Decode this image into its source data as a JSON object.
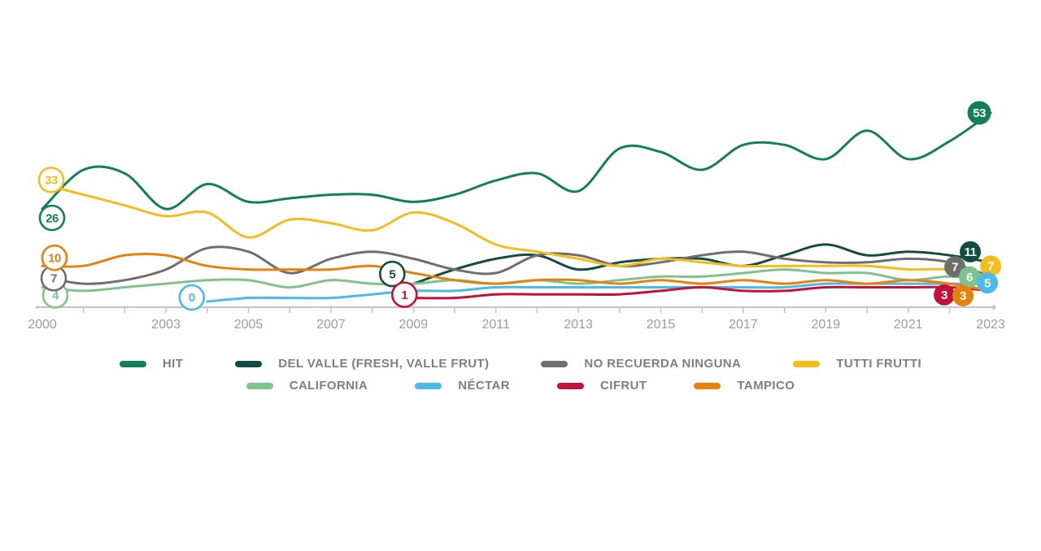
{
  "chart_data": {
    "type": "line",
    "title": "",
    "x_range": [
      2000,
      2023
    ],
    "x_labeled_years": [
      2000,
      2003,
      2005,
      2007,
      2009,
      2011,
      2013,
      2015,
      2017,
      2019,
      2021,
      2023
    ],
    "y_axis_visible": false,
    "grid": false,
    "legend_position": "bottom-center",
    "axis_color": "#c5c5c5",
    "axis_label_color": "#9c9c9c",
    "series": [
      {
        "name": "HIT",
        "color": "#0f8152",
        "start_year": 2000,
        "start_label": "26",
        "end_label": "53",
        "values": [
          26,
          37,
          36,
          26,
          33,
          28,
          29,
          30,
          30,
          28,
          30,
          34,
          36,
          31,
          43,
          42,
          37,
          44,
          44,
          40,
          48,
          40,
          45,
          53
        ]
      },
      {
        "name": "DEL VALLE (FRESH, VALLE FRUT)",
        "color": "#124d45",
        "start_year": 2009,
        "start_label": "5",
        "end_label": "11",
        "values": [
          5,
          9,
          12,
          13,
          9,
          11,
          12,
          12,
          10,
          13,
          16,
          13,
          14,
          13,
          11
        ]
      },
      {
        "name": "NO RECUERDA NINGUNA",
        "color": "#6f6e6c",
        "start_year": 2000,
        "start_label": "7",
        "end_label": "7",
        "values": [
          7,
          5,
          6,
          9,
          15,
          14,
          8,
          12,
          14,
          12,
          9,
          8,
          13,
          13,
          10,
          11,
          13,
          14,
          12,
          11,
          11,
          12,
          11,
          7
        ]
      },
      {
        "name": "TUTTI FRUTTI",
        "color": "#f3bd1c",
        "start_year": 2000,
        "start_label": "33",
        "end_label": "7",
        "values": [
          33,
          30,
          27,
          24,
          25,
          18,
          23,
          22,
          20,
          25,
          22,
          16,
          14,
          12,
          10,
          12,
          11,
          10,
          10,
          10,
          10,
          9,
          9,
          7
        ]
      },
      {
        "name": "CALIFORNIA",
        "color": "#7fc290",
        "start_year": 2000,
        "start_label": "4",
        "end_label": "6",
        "values": [
          4,
          3,
          4,
          5,
          6,
          6,
          4,
          6,
          5,
          5,
          6,
          5,
          6,
          5,
          6,
          7,
          7,
          8,
          9,
          8,
          8,
          6,
          7,
          6
        ]
      },
      {
        "name": "NÉCTAR",
        "color": "#4cb9e9",
        "start_year": 2004,
        "start_label": "0",
        "end_label": "5",
        "values": [
          0,
          1,
          1,
          1,
          2,
          3,
          3,
          4,
          4,
          4,
          4,
          4,
          4,
          4,
          4,
          5,
          5,
          5,
          5,
          5
        ]
      },
      {
        "name": "CIFRUT",
        "color": "#c31238",
        "start_year": 2009,
        "start_label": "1",
        "end_label": "3",
        "values": [
          1,
          1,
          2,
          2,
          2,
          2,
          3,
          4,
          3,
          3,
          4,
          4,
          4,
          4,
          3
        ]
      },
      {
        "name": "TAMPICO",
        "color": "#e5820e",
        "start_year": 2000,
        "start_label": "10",
        "end_label": "3",
        "values": [
          10,
          10,
          13,
          13,
          10,
          9,
          9,
          9,
          10,
          8,
          6,
          5,
          6,
          6,
          5,
          6,
          5,
          6,
          5,
          6,
          5,
          6,
          5,
          3
        ]
      }
    ],
    "legend_rows": [
      [
        0,
        1,
        2,
        3
      ],
      [
        4,
        5,
        6,
        7
      ]
    ]
  }
}
